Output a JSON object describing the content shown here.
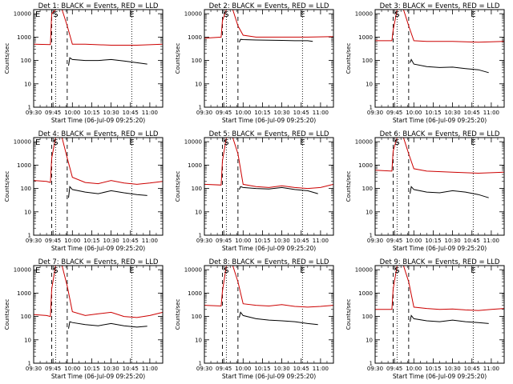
{
  "common": {
    "xlabel": "Start Time (06-Jul-09 09:25:20)",
    "ylabel": "Counts/sec",
    "x_ticks": [
      "09:30",
      "09:45",
      "10:00",
      "10:15",
      "10:30",
      "10:45",
      "11:00"
    ],
    "x_tick_minutes": [
      0,
      15,
      30,
      45,
      60,
      75,
      90
    ],
    "y_ticks": [
      "1",
      "10",
      "100",
      "1000",
      "10000"
    ],
    "y_tick_values": [
      1,
      10,
      100,
      1000,
      10000
    ]
  },
  "chart_data": [
    {
      "type": "line",
      "title": "Det 1: BLACK = Events, RED = LLD",
      "xlim_minutes": [
        0,
        100
      ],
      "ylim": [
        1,
        15000
      ],
      "yscale": "log",
      "flare_markers": [
        {
          "label": "E",
          "minute": 0
        },
        {
          "label": "S",
          "minute": 17
        },
        {
          "label": "E",
          "minute": 76
        }
      ],
      "dashed_lines_minutes": [
        14,
        26
      ],
      "dotted_lines_minutes": [
        17,
        76
      ],
      "series": [
        {
          "color": "#cc0000",
          "role": "LLD",
          "x": [
            0,
            13,
            14,
            17,
            22,
            26,
            30,
            40,
            60,
            80,
            100
          ],
          "y": [
            500,
            480,
            10000,
            15000,
            15000,
            3000,
            500,
            500,
            450,
            450,
            500
          ]
        },
        {
          "color": "#000000",
          "role": "Events",
          "x": [
            27,
            28,
            30,
            40,
            50,
            60,
            70,
            80,
            88
          ],
          "y": [
            60,
            130,
            110,
            100,
            100,
            110,
            95,
            80,
            70
          ]
        }
      ]
    },
    {
      "type": "line",
      "title": "Det 2: BLACK = Events, RED = LLD",
      "xlim_minutes": [
        0,
        100
      ],
      "ylim": [
        1,
        15000
      ],
      "yscale": "log",
      "flare_markers": [
        {
          "label": "S",
          "minute": 17
        },
        {
          "label": "E",
          "minute": 76
        }
      ],
      "dashed_lines_minutes": [
        14,
        26
      ],
      "dotted_lines_minutes": [
        17,
        76
      ],
      "series": [
        {
          "color": "#cc0000",
          "role": "LLD",
          "x": [
            0,
            13,
            14,
            17,
            22,
            26,
            30,
            40,
            60,
            80,
            100
          ],
          "y": [
            900,
            1000,
            5000,
            15000,
            15000,
            3000,
            1200,
            1000,
            1000,
            1000,
            1050
          ]
        },
        {
          "color": "#000000",
          "role": "Events",
          "x": [
            27,
            28,
            30,
            40,
            50,
            60,
            70,
            80,
            84
          ],
          "y": [
            600,
            800,
            780,
            750,
            740,
            720,
            700,
            700,
            650
          ]
        }
      ]
    },
    {
      "type": "line",
      "title": "Det 3: BLACK = Events, RED = LLD",
      "xlim_minutes": [
        0,
        100
      ],
      "ylim": [
        1,
        15000
      ],
      "yscale": "log",
      "flare_markers": [
        {
          "label": "S",
          "minute": 17
        },
        {
          "label": "E",
          "minute": 76
        }
      ],
      "dashed_lines_minutes": [
        14,
        26
      ],
      "dotted_lines_minutes": [
        17,
        76
      ],
      "series": [
        {
          "color": "#cc0000",
          "role": "LLD",
          "x": [
            0,
            13,
            14,
            17,
            22,
            26,
            30,
            40,
            60,
            80,
            100
          ],
          "y": [
            700,
            700,
            2000,
            15000,
            15000,
            3000,
            700,
            650,
            650,
            600,
            650
          ]
        },
        {
          "color": "#000000",
          "role": "Events",
          "x": [
            27,
            28,
            30,
            40,
            50,
            60,
            70,
            80,
            88
          ],
          "y": [
            80,
            110,
            70,
            55,
            50,
            52,
            45,
            40,
            30
          ]
        }
      ]
    },
    {
      "type": "line",
      "title": "Det 4: BLACK = Events, RED = LLD",
      "xlim_minutes": [
        0,
        100
      ],
      "ylim": [
        1,
        15000
      ],
      "yscale": "log",
      "flare_markers": [
        {
          "label": "E",
          "minute": 0
        },
        {
          "label": "S",
          "minute": 17
        },
        {
          "label": "E",
          "minute": 76
        }
      ],
      "dashed_lines_minutes": [
        14,
        26
      ],
      "dotted_lines_minutes": [
        17,
        76
      ],
      "series": [
        {
          "color": "#cc0000",
          "role": "LLD",
          "x": [
            0,
            10,
            13,
            14,
            17,
            22,
            26,
            30,
            40,
            50,
            60,
            70,
            80,
            90,
            100
          ],
          "y": [
            220,
            200,
            180,
            2000,
            15000,
            15000,
            2000,
            300,
            180,
            160,
            220,
            170,
            150,
            170,
            200
          ]
        },
        {
          "color": "#000000",
          "role": "Events",
          "x": [
            27,
            28,
            30,
            40,
            50,
            60,
            70,
            80,
            88
          ],
          "y": [
            40,
            120,
            90,
            70,
            60,
            80,
            65,
            55,
            50
          ]
        }
      ]
    },
    {
      "type": "line",
      "title": "Det 5: BLACK = Events, RED = LLD",
      "xlim_minutes": [
        0,
        100
      ],
      "ylim": [
        1,
        15000
      ],
      "yscale": "log",
      "flare_markers": [
        {
          "label": "S",
          "minute": 17
        },
        {
          "label": "E",
          "minute": 76
        }
      ],
      "dashed_lines_minutes": [
        14,
        26
      ],
      "dotted_lines_minutes": [
        17,
        76
      ],
      "series": [
        {
          "color": "#cc0000",
          "role": "LLD",
          "x": [
            0,
            13,
            14,
            17,
            22,
            26,
            30,
            40,
            50,
            60,
            70,
            80,
            90,
            100
          ],
          "y": [
            150,
            140,
            1500,
            15000,
            15000,
            3000,
            150,
            120,
            110,
            130,
            110,
            100,
            110,
            150
          ]
        },
        {
          "color": "#000000",
          "role": "Events",
          "x": [
            27,
            28,
            30,
            40,
            50,
            60,
            70,
            80,
            88
          ],
          "y": [
            90,
            120,
            110,
            100,
            95,
            110,
            90,
            80,
            60
          ]
        }
      ]
    },
    {
      "type": "line",
      "title": "Det 6: BLACK = Events, RED = LLD",
      "xlim_minutes": [
        0,
        100
      ],
      "ylim": [
        1,
        15000
      ],
      "yscale": "log",
      "flare_markers": [
        {
          "label": "S",
          "minute": 17
        },
        {
          "label": "E",
          "minute": 76
        }
      ],
      "dashed_lines_minutes": [
        14,
        26
      ],
      "dotted_lines_minutes": [
        17,
        76
      ],
      "series": [
        {
          "color": "#cc0000",
          "role": "LLD",
          "x": [
            0,
            13,
            14,
            17,
            22,
            26,
            30,
            40,
            60,
            80,
            100
          ],
          "y": [
            600,
            550,
            4000,
            15000,
            15000,
            3000,
            700,
            550,
            500,
            450,
            500
          ]
        },
        {
          "color": "#000000",
          "role": "Events",
          "x": [
            27,
            28,
            30,
            40,
            50,
            60,
            70,
            80,
            88
          ],
          "y": [
            60,
            120,
            90,
            70,
            65,
            80,
            70,
            55,
            40
          ]
        }
      ]
    },
    {
      "type": "line",
      "title": "Det 7: BLACK = Events, RED = LLD",
      "xlim_minutes": [
        0,
        100
      ],
      "ylim": [
        1,
        15000
      ],
      "yscale": "log",
      "flare_markers": [
        {
          "label": "E",
          "minute": 0
        },
        {
          "label": "S",
          "minute": 17
        },
        {
          "label": "E",
          "minute": 76
        }
      ],
      "dashed_lines_minutes": [
        14,
        26
      ],
      "dotted_lines_minutes": [
        17,
        76
      ],
      "series": [
        {
          "color": "#cc0000",
          "role": "LLD",
          "x": [
            0,
            10,
            13,
            14,
            17,
            22,
            26,
            30,
            40,
            50,
            60,
            70,
            80,
            90,
            100
          ],
          "y": [
            120,
            110,
            100,
            1500,
            15000,
            15000,
            2000,
            160,
            110,
            130,
            150,
            100,
            90,
            110,
            150
          ]
        },
        {
          "color": "#000000",
          "role": "Events",
          "x": [
            27,
            28,
            30,
            40,
            50,
            60,
            70,
            80,
            88
          ],
          "y": [
            30,
            60,
            55,
            45,
            40,
            50,
            40,
            35,
            38
          ]
        }
      ]
    },
    {
      "type": "line",
      "title": "Det 8: BLACK = Events, RED = LLD",
      "xlim_minutes": [
        0,
        100
      ],
      "ylim": [
        1,
        15000
      ],
      "yscale": "log",
      "flare_markers": [
        {
          "label": "S",
          "minute": 17
        },
        {
          "label": "E",
          "minute": 76
        }
      ],
      "dashed_lines_minutes": [
        14,
        26
      ],
      "dotted_lines_minutes": [
        17,
        76
      ],
      "series": [
        {
          "color": "#cc0000",
          "role": "LLD",
          "x": [
            0,
            13,
            14,
            17,
            22,
            26,
            30,
            40,
            50,
            60,
            70,
            80,
            90,
            100
          ],
          "y": [
            300,
            280,
            1200,
            15000,
            15000,
            3000,
            350,
            300,
            280,
            320,
            270,
            250,
            270,
            300
          ]
        },
        {
          "color": "#000000",
          "role": "Events",
          "x": [
            27,
            28,
            30,
            40,
            50,
            60,
            70,
            80,
            88
          ],
          "y": [
            90,
            150,
            110,
            80,
            70,
            65,
            60,
            50,
            45
          ]
        }
      ]
    },
    {
      "type": "line",
      "title": "Det 9: BLACK = Events, RED = LLD",
      "xlim_minutes": [
        0,
        100
      ],
      "ylim": [
        1,
        15000
      ],
      "yscale": "log",
      "flare_markers": [
        {
          "label": "S",
          "minute": 17
        },
        {
          "label": "E",
          "minute": 76
        }
      ],
      "dashed_lines_minutes": [
        14,
        26
      ],
      "dotted_lines_minutes": [
        17,
        76
      ],
      "series": [
        {
          "color": "#cc0000",
          "role": "LLD",
          "x": [
            0,
            13,
            14,
            17,
            22,
            26,
            30,
            40,
            50,
            60,
            70,
            80,
            90,
            100
          ],
          "y": [
            200,
            200,
            1500,
            15000,
            15000,
            3000,
            250,
            220,
            200,
            210,
            190,
            180,
            200,
            220
          ]
        },
        {
          "color": "#000000",
          "role": "Events",
          "x": [
            27,
            28,
            30,
            40,
            50,
            60,
            70,
            80,
            88
          ],
          "y": [
            60,
            110,
            80,
            65,
            60,
            70,
            60,
            55,
            50
          ]
        }
      ]
    }
  ]
}
